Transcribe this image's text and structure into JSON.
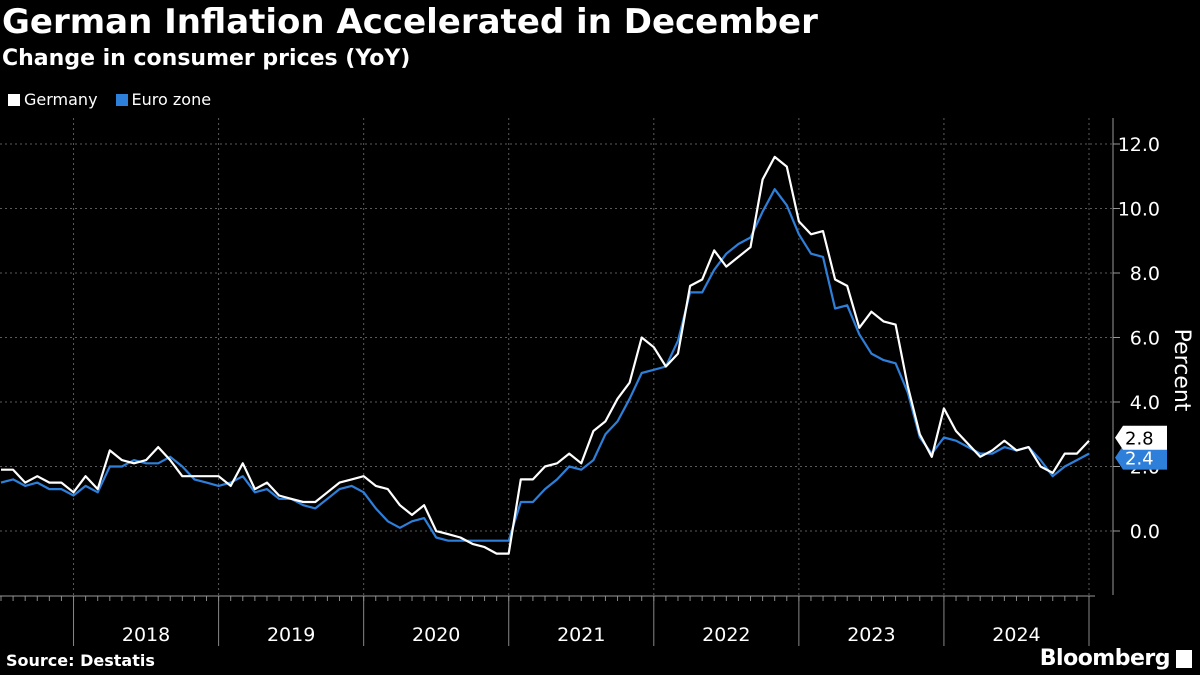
{
  "header": {
    "title": "German Inflation Accelerated in December",
    "subtitle": "Change in consumer prices (YoY)"
  },
  "footer": {
    "source": "Source: Destatis",
    "brand": "Bloomberg"
  },
  "colors": {
    "background": "#000000",
    "germany": "#ffffff",
    "euro_zone": "#2e7fd9",
    "grid": "#555555"
  },
  "chart_data": {
    "type": "line",
    "title": "German Inflation Accelerated in December",
    "subtitle": "Change in consumer prices (YoY)",
    "ylabel": "Percent",
    "xlabel": "",
    "ylim": [
      -2,
      12.5
    ],
    "yticks": [
      0,
      2,
      4,
      6,
      8,
      10,
      12
    ],
    "ytick_labels": [
      "0.0",
      "2.0",
      "4.0",
      "6.0",
      "8.0",
      "10.0",
      "12.0"
    ],
    "year_labels": [
      "2018",
      "2019",
      "2020",
      "2021",
      "2022",
      "2023",
      "2024"
    ],
    "x_start": "2017-07",
    "x_end": "2024-12",
    "grid": true,
    "legend_position": "top-left",
    "end_labels": {
      "Germany": "2.8",
      "Euro zone": "2.4"
    },
    "series": [
      {
        "name": "Germany",
        "color": "#ffffff",
        "values": [
          1.9,
          1.9,
          1.5,
          1.7,
          1.5,
          1.5,
          1.2,
          1.7,
          1.3,
          2.5,
          2.2,
          2.1,
          2.2,
          2.6,
          2.2,
          1.7,
          1.7,
          1.7,
          1.7,
          1.4,
          2.1,
          1.3,
          1.5,
          1.1,
          1.0,
          0.9,
          0.9,
          1.2,
          1.5,
          1.6,
          1.7,
          1.4,
          1.3,
          0.8,
          0.5,
          0.8,
          0.0,
          -0.1,
          -0.2,
          -0.4,
          -0.5,
          -0.7,
          -0.7,
          1.6,
          1.6,
          2.0,
          2.1,
          2.4,
          2.1,
          3.1,
          3.4,
          4.1,
          4.6,
          6.0,
          5.7,
          5.1,
          5.5,
          7.6,
          7.8,
          8.7,
          8.2,
          8.5,
          8.8,
          10.9,
          11.6,
          11.3,
          9.6,
          9.2,
          9.3,
          7.8,
          7.6,
          6.3,
          6.8,
          6.5,
          6.4,
          4.5,
          3.0,
          2.3,
          3.8,
          3.1,
          2.7,
          2.3,
          2.5,
          2.8,
          2.5,
          2.6,
          2.0,
          1.8,
          2.4,
          2.4,
          2.8
        ]
      },
      {
        "name": "Euro zone",
        "color": "#2e7fd9",
        "values": [
          1.5,
          1.6,
          1.4,
          1.5,
          1.3,
          1.3,
          1.1,
          1.4,
          1.2,
          2.0,
          2.0,
          2.2,
          2.1,
          2.1,
          2.3,
          2.0,
          1.6,
          1.5,
          1.4,
          1.5,
          1.7,
          1.2,
          1.3,
          1.0,
          1.0,
          0.8,
          0.7,
          1.0,
          1.3,
          1.4,
          1.2,
          0.7,
          0.3,
          0.1,
          0.3,
          0.4,
          -0.2,
          -0.3,
          -0.3,
          -0.3,
          -0.3,
          -0.3,
          -0.3,
          0.9,
          0.9,
          1.3,
          1.6,
          2.0,
          1.9,
          2.2,
          3.0,
          3.4,
          4.1,
          4.9,
          5.0,
          5.1,
          5.9,
          7.4,
          7.4,
          8.1,
          8.6,
          8.9,
          9.1,
          9.9,
          10.6,
          10.1,
          9.2,
          8.6,
          8.5,
          6.9,
          7.0,
          6.1,
          5.5,
          5.3,
          5.2,
          4.3,
          2.9,
          2.4,
          2.9,
          2.8,
          2.6,
          2.4,
          2.4,
          2.6,
          2.5,
          2.6,
          2.2,
          1.7,
          2.0,
          2.2,
          2.4
        ]
      }
    ]
  }
}
